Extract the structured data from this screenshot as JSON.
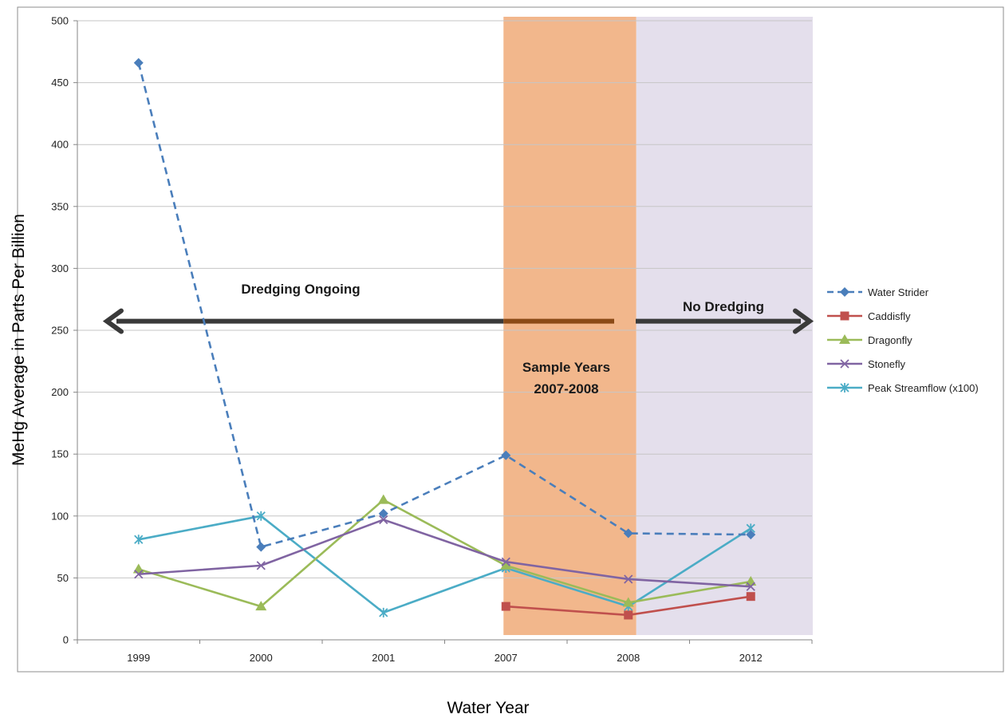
{
  "chart_data": {
    "type": "line",
    "xlabel": "Water Year",
    "ylabel": "MeHg Average in Parts Per Billion",
    "categories": [
      "1999",
      "2000",
      "2001",
      "2007",
      "2008",
      "2012"
    ],
    "ylim": [
      0,
      500
    ],
    "yticks": [
      0,
      50,
      100,
      150,
      200,
      250,
      300,
      350,
      400,
      450,
      500
    ],
    "grid": "horizontal",
    "legend_position": "right",
    "series": [
      {
        "name": "Water Strider",
        "color": "#4a7ebb",
        "dash": true,
        "marker": "diamond",
        "values": [
          466,
          75,
          102,
          149,
          86,
          85
        ]
      },
      {
        "name": "Caddisfly",
        "color": "#c0504d",
        "dash": false,
        "marker": "square",
        "values": [
          null,
          null,
          null,
          27,
          20,
          35
        ]
      },
      {
        "name": "Dragonfly",
        "color": "#9bbb59",
        "dash": false,
        "marker": "triangle",
        "values": [
          57,
          27,
          113,
          60,
          30,
          47
        ]
      },
      {
        "name": "Stonefly",
        "color": "#8064a2",
        "dash": false,
        "marker": "x",
        "values": [
          53,
          60,
          97,
          63,
          49,
          43
        ]
      },
      {
        "name": "Peak Streamflow (x100)",
        "color": "#4bacc6",
        "dash": false,
        "marker": "star",
        "values": [
          81,
          100,
          22,
          58,
          27,
          90
        ]
      }
    ],
    "shaded_regions": [
      {
        "from_category": "2007",
        "to_category": "2008",
        "color": "#f2b78c",
        "label": [
          "Sample Years",
          "2007-2008"
        ]
      },
      {
        "from_category": "2008",
        "to_category": "2012",
        "color": "#e4dfec"
      }
    ],
    "annotations": {
      "arrow_y_value": 258,
      "left_label": "Dredging Ongoing",
      "right_label": "No Dredging"
    }
  }
}
